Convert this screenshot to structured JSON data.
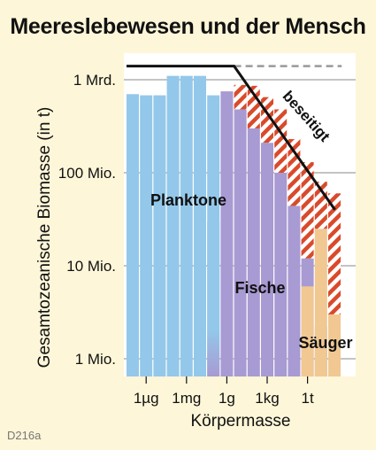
{
  "title": "Meereslebewesen und der Mensch",
  "code": "D216a",
  "chart_data": {
    "type": "bar",
    "title": "Meereslebewesen und der Mensch",
    "xlabel": "Körpermasse",
    "ylabel": "Gesamtozeanische Biomasse (in t)",
    "y_scale": "log",
    "ylim": [
      0.7,
      2200000000
    ],
    "yticks": [
      {
        "value": 1,
        "label": "1 Mio."
      },
      {
        "value": 10,
        "label": "10 Mio."
      },
      {
        "value": 100,
        "label": "100 Mio."
      },
      {
        "value": 1000,
        "label": "1 Mrd."
      }
    ],
    "xticks": [
      {
        "bin": 1,
        "label": "1µg"
      },
      {
        "bin": 4,
        "label": "1mg"
      },
      {
        "bin": 7,
        "label": "1g"
      },
      {
        "bin": 10,
        "label": "1kg"
      },
      {
        "bin": 13,
        "label": "1t"
      }
    ],
    "groups": [
      {
        "name": "Planktone",
        "color": "#93c8ea"
      },
      {
        "name": "Fische",
        "color": "#a89ad2"
      },
      {
        "name": "Säuger",
        "color": "#f1c892"
      }
    ],
    "series": [
      {
        "name": "Planktone",
        "bins": [
          0,
          1,
          2,
          3,
          4,
          5,
          6,
          7
        ],
        "values": [
          700,
          680,
          680,
          1100,
          1100,
          1100,
          680,
          0
        ]
      },
      {
        "name": "Fische",
        "bins": [
          6,
          7,
          8,
          9,
          10,
          11,
          12,
          13,
          14
        ],
        "values": [
          30,
          750,
          480,
          300,
          210,
          100,
          44,
          12,
          2.2
        ]
      },
      {
        "name": "Säuger",
        "bins": [
          13,
          14,
          15
        ],
        "values": [
          6,
          25,
          3
        ]
      }
    ],
    "removed_upper": [
      0,
      0,
      0,
      0,
      0,
      0,
      0,
      0,
      880,
      860,
      650,
      480,
      230,
      130,
      80,
      60
    ],
    "pre_human_line": [
      {
        "bin_start": 0,
        "bin_end": 8,
        "value": 1400
      },
      {
        "bin_start": 8,
        "bin_end": 15.5,
        "value": 40
      }
    ],
    "dashed_line": {
      "bin_start": 8,
      "bin_end": 16,
      "value": 1400
    },
    "annotations": [
      "beseitigt"
    ]
  }
}
